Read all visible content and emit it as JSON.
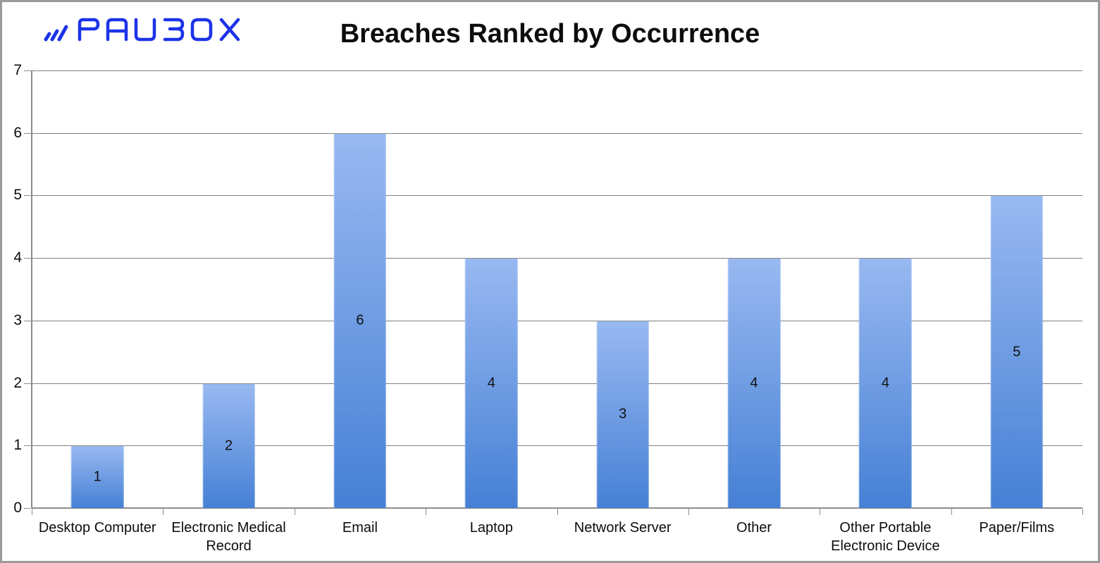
{
  "header": {
    "logo_text": "PAUBOX",
    "title": "Breaches Ranked by Occurrence"
  },
  "colors": {
    "logo_blue": "#1c33e8",
    "bar_gradient_top": "#98b9f1",
    "bar_gradient_bottom": "#4680d5",
    "gridline": "#808080",
    "axis": "#8c8c8c",
    "frame_border": "#9a9a9a",
    "text": "#0d0d0d"
  },
  "chart_data": {
    "type": "bar",
    "title": "Breaches Ranked by Occurrence",
    "categories": [
      "Desktop Computer",
      "Electronic Medical Record",
      "Email",
      "Laptop",
      "Network Server",
      "Other",
      "Other Portable Electronic Device",
      "Paper/Films"
    ],
    "values": [
      1,
      2,
      6,
      4,
      3,
      4,
      4,
      5
    ],
    "data_labels": [
      "1",
      "2",
      "6",
      "4",
      "3",
      "4",
      "4",
      "5"
    ],
    "data_label_position": "inside-center",
    "xlabel": "",
    "ylabel": "",
    "ylim": [
      0,
      7
    ],
    "yticks": [
      0,
      1,
      2,
      3,
      4,
      5,
      6,
      7
    ],
    "grid": "horizontal",
    "legend": "none"
  }
}
